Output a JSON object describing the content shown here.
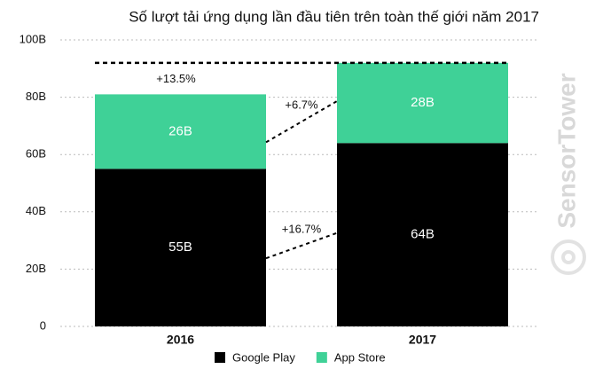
{
  "chart_data": {
    "type": "bar",
    "stacked": true,
    "title": "Số lượt tải ứng dụng lần đầu tiên trên toàn thế giới năm 2017",
    "categories": [
      "2016",
      "2017"
    ],
    "series": [
      {
        "name": "Google Play",
        "color": "#000000",
        "values": [
          55,
          64
        ],
        "value_labels": [
          "55B",
          "64B"
        ]
      },
      {
        "name": "App Store",
        "color": "#3fd197",
        "values": [
          26,
          28
        ],
        "value_labels": [
          "26B",
          "28B"
        ]
      }
    ],
    "ylim": [
      0,
      100
    ],
    "yticks": [
      0,
      {
        "value": 20,
        "label": "20B"
      },
      {
        "value": 40,
        "label": "40B"
      },
      {
        "value": 60,
        "label": "60B"
      },
      {
        "value": 80,
        "label": "80B"
      },
      {
        "value": 100,
        "label": "100B"
      }
    ],
    "grid": true,
    "annotations": [
      "+13.5%",
      "+6.7%",
      "+16.7%"
    ],
    "watermark": "SensorTower"
  }
}
